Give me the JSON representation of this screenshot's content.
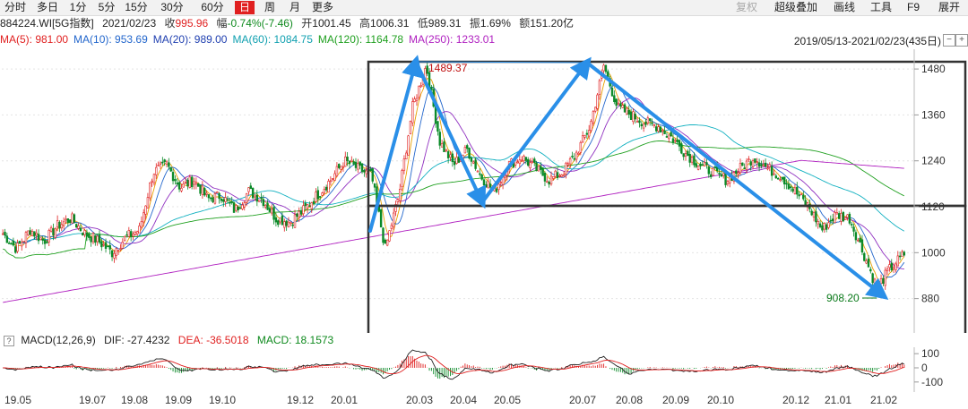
{
  "toolbar": {
    "periods": [
      "分时",
      "多日",
      "1分",
      "5分",
      "15分",
      "30分",
      "60分",
      "日",
      "周",
      "月",
      "更多"
    ],
    "active_period": "日",
    "right": [
      "复权",
      "超级叠加",
      "画线",
      "工具",
      "F9",
      "展开"
    ]
  },
  "info": {
    "code": "884224.WI[5G指数]",
    "date": "2021/02/23",
    "close_label": "收",
    "close": "995.96",
    "chg_label": "幅",
    "chg": "-0.74%(-7.46)",
    "open_label": "开",
    "open": "1001.45",
    "high_label": "高",
    "high": "1006.31",
    "low_label": "低",
    "low": "989.31",
    "amp_label": "振",
    "amp": "1.69%",
    "amount_label": "额",
    "amount": "151.20亿"
  },
  "ma_legend": [
    {
      "text": "MA(5): 981.00",
      "color": "#e02020"
    },
    {
      "text": "MA(10): 953.69",
      "color": "#2266cc"
    },
    {
      "text": "MA(20): 989.00",
      "color": "#2040b0"
    },
    {
      "text": "MA(60): 1084.75",
      "color": "#10a0b0"
    },
    {
      "text": "MA(120): 1164.78",
      "color": "#20a020"
    },
    {
      "text": "MA(250): 1233.01",
      "color": "#b020c0"
    }
  ],
  "range": "2019/05/13-2021/02/23(435日)",
  "range_buttons": [
    "−",
    "+"
  ],
  "macd": {
    "q": "?",
    "name": "MACD(12,26,9)",
    "dif": "DIF: -27.4232",
    "dea": "DEA: -36.5018",
    "macd": "MACD: 18.1573"
  },
  "price_axis": [
    "1480",
    "1360",
    "1240",
    "1120",
    "1000",
    "880"
  ],
  "macd_axis": [
    "100",
    "0",
    "-100"
  ],
  "annotations": {
    "high": "1489.37",
    "low": "908.20"
  },
  "x_axis": [
    "19.05",
    "19.07",
    "19.08",
    "19.09",
    "19.10",
    "19.12",
    "20.01",
    "20.03",
    "20.04",
    "20.05",
    "20.07",
    "20.08",
    "20.09",
    "20.10",
    "20.12",
    "21.01",
    "21.02"
  ],
  "chart_data": {
    "type": "candlestick",
    "x_ticks": [
      "19.05",
      "19.07",
      "19.08",
      "19.09",
      "19.10",
      "19.12",
      "20.01",
      "20.03",
      "20.04",
      "20.05",
      "20.07",
      "20.08",
      "20.09",
      "20.10",
      "20.12",
      "21.01",
      "21.02"
    ],
    "y_ticks": [
      1480,
      1360,
      1240,
      1120,
      1000,
      880
    ],
    "ylim": [
      830,
      1520
    ],
    "close_path": [
      1050,
      1010,
      1060,
      1030,
      1070,
      1090,
      1050,
      1030,
      1000,
      1040,
      1060,
      1210,
      1230,
      1170,
      1190,
      1140,
      1150,
      1110,
      1160,
      1140,
      1090,
      1080,
      1110,
      1150,
      1190,
      1240,
      1220,
      1200,
      1010,
      1150,
      1380,
      1489,
      1290,
      1230,
      1270,
      1200,
      1160,
      1230,
      1250,
      1220,
      1190,
      1210,
      1260,
      1330,
      1489,
      1380,
      1360,
      1340,
      1330,
      1300,
      1260,
      1230,
      1210,
      1190,
      1220,
      1250,
      1220,
      1200,
      1160,
      1120,
      1060,
      1100,
      1090,
      1000,
      908,
      960,
      996
    ],
    "annotations": [
      {
        "label": "1489.37",
        "value": 1489.37
      },
      {
        "label": "908.20",
        "value": 908.2
      }
    ],
    "macd_ylim": [
      -120,
      120
    ],
    "macd_ticks": [
      100,
      0,
      -100
    ]
  }
}
